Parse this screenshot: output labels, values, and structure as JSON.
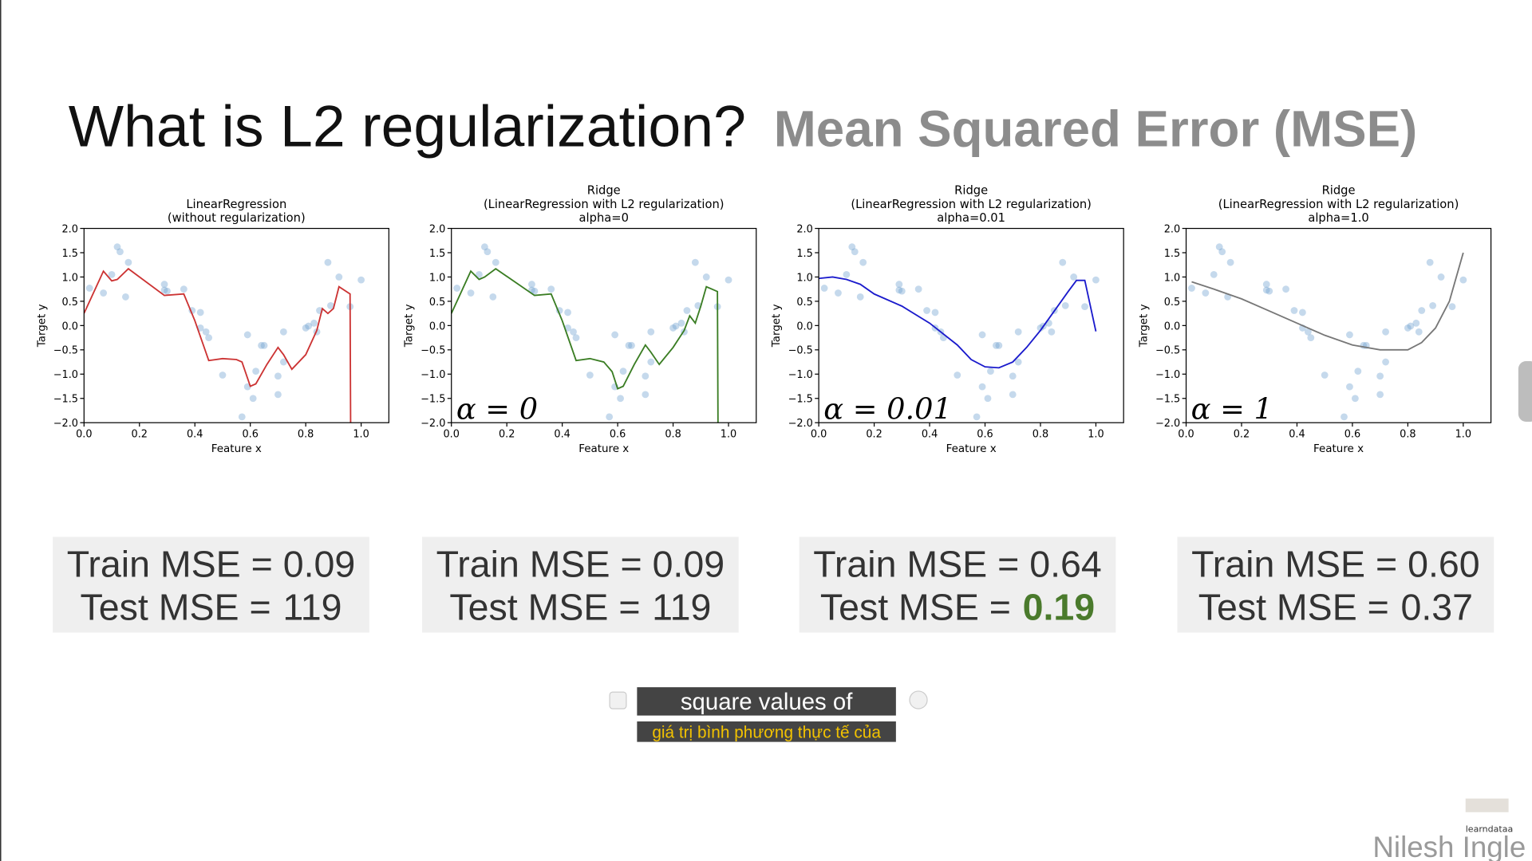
{
  "header": {
    "title": "What is L2 regularization?",
    "subtitle": "Mean Squared Error (MSE)"
  },
  "chart_data": [
    {
      "type": "scatter",
      "title": [
        "LinearRegression",
        "(without regularization)"
      ],
      "x_label": "Feature x",
      "y_label": "Target y",
      "xlim": [
        0,
        1.1
      ],
      "ylim": [
        -2,
        2
      ],
      "xticks": [
        {
          "value": 0,
          "label": "0.0"
        },
        {
          "value": 0.2,
          "label": "0.2"
        },
        {
          "value": 0.4,
          "label": "0.4"
        },
        {
          "value": 0.6,
          "label": "0.6"
        },
        {
          "value": 0.8,
          "label": "0.8"
        },
        {
          "value": 1,
          "label": "1.0"
        }
      ],
      "yticks": [
        {
          "value": -2,
          "label": "−2.0"
        },
        {
          "value": -1.5,
          "label": "−1.5"
        },
        {
          "value": -1,
          "label": "−1.0"
        },
        {
          "value": -0.5,
          "label": "−0.5"
        },
        {
          "value": 0,
          "label": "0.0"
        },
        {
          "value": 0.5,
          "label": "0.5"
        },
        {
          "value": 1,
          "label": "1.0"
        },
        {
          "value": 1.5,
          "label": "1.5"
        },
        {
          "value": 2,
          "label": "2.0"
        }
      ],
      "series": [
        {
          "style": "points",
          "color": "#6f9fd0",
          "x": [
            0.02,
            0.07,
            0.1,
            0.12,
            0.13,
            0.15,
            0.16,
            0.29,
            0.29,
            0.3,
            0.36,
            0.39,
            0.42,
            0.42,
            0.44,
            0.45,
            0.5,
            0.57,
            0.59,
            0.59,
            0.61,
            0.62,
            0.64,
            0.65,
            0.7,
            0.7,
            0.72,
            0.72,
            0.8,
            0.81,
            0.83,
            0.84,
            0.85,
            0.88,
            0.89,
            0.92,
            0.96,
            1.0
          ],
          "values": [
            0.77,
            0.67,
            1.05,
            1.62,
            1.52,
            0.59,
            1.3,
            0.85,
            0.73,
            0.71,
            0.75,
            0.31,
            -0.05,
            0.27,
            -0.13,
            -0.25,
            -1.02,
            -1.88,
            -0.19,
            -1.26,
            -1.5,
            -0.94,
            -0.41,
            -0.41,
            -1.04,
            -1.42,
            -0.75,
            -0.13,
            -0.05,
            -0.01,
            0.05,
            -0.13,
            0.31,
            1.3,
            0.41,
            1.0,
            0.39,
            0.94
          ]
        },
        {
          "style": "line",
          "color": "#cc3333",
          "x": [
            0,
            0.07,
            0.1,
            0.12,
            0.16,
            0.29,
            0.36,
            0.4,
            0.45,
            0.5,
            0.55,
            0.57,
            0.6,
            0.62,
            0.66,
            0.7,
            0.72,
            0.75,
            0.8,
            0.84,
            0.86,
            0.88,
            0.9,
            0.92,
            0.96,
            0.962
          ],
          "values": [
            0.25,
            1.12,
            0.92,
            0.95,
            1.17,
            0.62,
            0.65,
            0.1,
            -0.72,
            -0.68,
            -0.7,
            -0.75,
            -1.25,
            -1.2,
            -0.8,
            -0.45,
            -0.6,
            -0.9,
            -0.6,
            -0.1,
            0.35,
            0.25,
            0.35,
            0.8,
            0.65,
            -2.0
          ]
        }
      ]
    },
    {
      "type": "scatter",
      "title": [
        "Ridge",
        "(LinearRegression with L2 regularization)",
        "alpha=0"
      ],
      "x_label": "Feature x",
      "y_label": "Target y",
      "annotation": "α = 0",
      "xlim": [
        0,
        1.1
      ],
      "ylim": [
        -2,
        2
      ],
      "xticks": [
        {
          "value": 0,
          "label": "0.0"
        },
        {
          "value": 0.2,
          "label": "0.2"
        },
        {
          "value": 0.4,
          "label": "0.4"
        },
        {
          "value": 0.6,
          "label": "0.6"
        },
        {
          "value": 0.8,
          "label": "0.8"
        },
        {
          "value": 1,
          "label": "1.0"
        }
      ],
      "yticks": [
        {
          "value": -2,
          "label": "−2.0"
        },
        {
          "value": -1.5,
          "label": "−1.5"
        },
        {
          "value": -1,
          "label": "−1.0"
        },
        {
          "value": -0.5,
          "label": "−0.5"
        },
        {
          "value": 0,
          "label": "0.0"
        },
        {
          "value": 0.5,
          "label": "0.5"
        },
        {
          "value": 1,
          "label": "1.0"
        },
        {
          "value": 1.5,
          "label": "1.5"
        },
        {
          "value": 2,
          "label": "2.0"
        }
      ],
      "series": [
        {
          "style": "points",
          "color": "#6f9fd0",
          "x": [
            0.02,
            0.07,
            0.1,
            0.12,
            0.13,
            0.15,
            0.16,
            0.29,
            0.29,
            0.3,
            0.36,
            0.39,
            0.42,
            0.42,
            0.44,
            0.45,
            0.5,
            0.57,
            0.59,
            0.59,
            0.61,
            0.62,
            0.64,
            0.65,
            0.7,
            0.7,
            0.72,
            0.72,
            0.8,
            0.81,
            0.83,
            0.84,
            0.85,
            0.88,
            0.89,
            0.92,
            0.96,
            1.0
          ],
          "values": [
            0.77,
            0.67,
            1.05,
            1.62,
            1.52,
            0.59,
            1.3,
            0.85,
            0.73,
            0.71,
            0.75,
            0.31,
            -0.05,
            0.27,
            -0.13,
            -0.25,
            -1.02,
            -1.88,
            -0.19,
            -1.26,
            -1.5,
            -0.94,
            -0.41,
            -0.41,
            -1.04,
            -1.42,
            -0.75,
            -0.13,
            -0.05,
            -0.01,
            0.05,
            -0.13,
            0.31,
            1.3,
            0.41,
            1.0,
            0.39,
            0.94
          ]
        },
        {
          "style": "line",
          "color": "#3a7d23",
          "x": [
            0,
            0.07,
            0.1,
            0.12,
            0.16,
            0.3,
            0.36,
            0.4,
            0.45,
            0.5,
            0.55,
            0.58,
            0.6,
            0.62,
            0.66,
            0.7,
            0.72,
            0.75,
            0.8,
            0.84,
            0.86,
            0.88,
            0.9,
            0.92,
            0.96,
            0.962
          ],
          "values": [
            0.25,
            1.12,
            0.95,
            1.0,
            1.17,
            0.62,
            0.65,
            0.1,
            -0.72,
            -0.68,
            -0.75,
            -0.95,
            -1.3,
            -1.25,
            -0.8,
            -0.4,
            -0.55,
            -0.8,
            -0.45,
            -0.1,
            0.2,
            0.05,
            0.4,
            0.8,
            0.7,
            -2.0
          ]
        }
      ]
    },
    {
      "type": "scatter",
      "title": [
        "Ridge",
        "(LinearRegression with L2 regularization)",
        "alpha=0.01"
      ],
      "x_label": "Feature x",
      "y_label": "Target y",
      "annotation": "α = 0.01",
      "xlim": [
        0,
        1.1
      ],
      "ylim": [
        -2,
        2
      ],
      "xticks": [
        {
          "value": 0,
          "label": "0.0"
        },
        {
          "value": 0.2,
          "label": "0.2"
        },
        {
          "value": 0.4,
          "label": "0.4"
        },
        {
          "value": 0.6,
          "label": "0.6"
        },
        {
          "value": 0.8,
          "label": "0.8"
        },
        {
          "value": 1,
          "label": "1.0"
        }
      ],
      "yticks": [
        {
          "value": -2,
          "label": "−2.0"
        },
        {
          "value": -1.5,
          "label": "−1.5"
        },
        {
          "value": -1,
          "label": "−1.0"
        },
        {
          "value": -0.5,
          "label": "−0.5"
        },
        {
          "value": 0,
          "label": "0.0"
        },
        {
          "value": 0.5,
          "label": "0.5"
        },
        {
          "value": 1,
          "label": "1.0"
        },
        {
          "value": 1.5,
          "label": "1.5"
        },
        {
          "value": 2,
          "label": "2.0"
        }
      ],
      "series": [
        {
          "style": "points",
          "color": "#6f9fd0",
          "x": [
            0.02,
            0.07,
            0.1,
            0.12,
            0.13,
            0.15,
            0.16,
            0.29,
            0.29,
            0.3,
            0.36,
            0.39,
            0.42,
            0.42,
            0.44,
            0.45,
            0.5,
            0.57,
            0.59,
            0.59,
            0.61,
            0.62,
            0.64,
            0.65,
            0.7,
            0.7,
            0.72,
            0.72,
            0.8,
            0.81,
            0.83,
            0.84,
            0.85,
            0.88,
            0.89,
            0.92,
            0.96,
            1.0
          ],
          "values": [
            0.77,
            0.67,
            1.05,
            1.62,
            1.52,
            0.59,
            1.3,
            0.85,
            0.73,
            0.71,
            0.75,
            0.31,
            -0.05,
            0.27,
            -0.13,
            -0.25,
            -1.02,
            -1.88,
            -0.19,
            -1.26,
            -1.5,
            -0.94,
            -0.41,
            -0.41,
            -1.04,
            -1.42,
            -0.75,
            -0.13,
            -0.05,
            -0.01,
            0.05,
            -0.13,
            0.31,
            1.3,
            0.41,
            1.0,
            0.39,
            0.94
          ]
        },
        {
          "style": "line",
          "color": "#1a1acc",
          "x": [
            0,
            0.05,
            0.1,
            0.15,
            0.2,
            0.3,
            0.4,
            0.5,
            0.55,
            0.6,
            0.65,
            0.7,
            0.75,
            0.8,
            0.85,
            0.9,
            0.93,
            0.96,
            1.0
          ],
          "values": [
            0.97,
            1.0,
            0.95,
            0.85,
            0.65,
            0.4,
            0.05,
            -0.4,
            -0.7,
            -0.85,
            -0.87,
            -0.75,
            -0.45,
            -0.1,
            0.3,
            0.7,
            0.93,
            0.93,
            -0.12
          ]
        }
      ]
    },
    {
      "type": "scatter",
      "title": [
        "Ridge",
        "(LinearRegression with L2 regularization)",
        "alpha=1.0"
      ],
      "x_label": "Feature x",
      "y_label": "Target y",
      "annotation": "α = 1",
      "xlim": [
        0,
        1.1
      ],
      "ylim": [
        -2,
        2
      ],
      "xticks": [
        {
          "value": 0,
          "label": "0.0"
        },
        {
          "value": 0.2,
          "label": "0.2"
        },
        {
          "value": 0.4,
          "label": "0.4"
        },
        {
          "value": 0.6,
          "label": "0.6"
        },
        {
          "value": 0.8,
          "label": "0.8"
        },
        {
          "value": 1,
          "label": "1.0"
        }
      ],
      "yticks": [
        {
          "value": -2,
          "label": "−2.0"
        },
        {
          "value": -1.5,
          "label": "−1.5"
        },
        {
          "value": -1,
          "label": "−1.0"
        },
        {
          "value": -0.5,
          "label": "−0.5"
        },
        {
          "value": 0,
          "label": "0.0"
        },
        {
          "value": 0.5,
          "label": "0.5"
        },
        {
          "value": 1,
          "label": "1.0"
        },
        {
          "value": 1.5,
          "label": "1.5"
        },
        {
          "value": 2,
          "label": "2.0"
        }
      ],
      "series": [
        {
          "style": "points",
          "color": "#6f9fd0",
          "x": [
            0.02,
            0.07,
            0.1,
            0.12,
            0.13,
            0.15,
            0.16,
            0.29,
            0.29,
            0.3,
            0.36,
            0.39,
            0.42,
            0.42,
            0.44,
            0.45,
            0.5,
            0.57,
            0.59,
            0.59,
            0.61,
            0.62,
            0.64,
            0.65,
            0.7,
            0.7,
            0.72,
            0.72,
            0.8,
            0.81,
            0.83,
            0.84,
            0.85,
            0.88,
            0.89,
            0.92,
            0.96,
            1.0
          ],
          "values": [
            0.77,
            0.67,
            1.05,
            1.62,
            1.52,
            0.59,
            1.3,
            0.85,
            0.73,
            0.71,
            0.75,
            0.31,
            -0.05,
            0.27,
            -0.13,
            -0.25,
            -1.02,
            -1.88,
            -0.19,
            -1.26,
            -1.5,
            -0.94,
            -0.41,
            -0.41,
            -1.04,
            -1.42,
            -0.75,
            -0.13,
            -0.05,
            -0.01,
            0.05,
            -0.13,
            0.31,
            1.3,
            0.41,
            1.0,
            0.39,
            0.94
          ]
        },
        {
          "style": "line",
          "color": "#777777",
          "x": [
            0.02,
            0.1,
            0.2,
            0.3,
            0.4,
            0.5,
            0.6,
            0.7,
            0.8,
            0.85,
            0.9,
            0.95,
            1.0
          ],
          "values": [
            0.9,
            0.75,
            0.55,
            0.3,
            0.05,
            -0.2,
            -0.4,
            -0.5,
            -0.5,
            -0.35,
            -0.05,
            0.5,
            1.5
          ]
        }
      ]
    }
  ],
  "mse_boxes": [
    {
      "train": "Train MSE = 0.09",
      "test_label": "Test MSE =",
      "test_value": "119",
      "highlight": false
    },
    {
      "train": "Train MSE = 0.09",
      "test_label": "Test MSE =",
      "test_value": "119",
      "highlight": false
    },
    {
      "train": "Train MSE = 0.64",
      "test_label": "Test MSE =",
      "test_value": "0.19",
      "highlight": true
    },
    {
      "train": "Train MSE = 0.60",
      "test_label": "Test MSE =",
      "test_value": "0.37",
      "highlight": false
    }
  ],
  "caption": {
    "line1": "square values of",
    "line2": "giá trị bình phương thực tế của"
  },
  "watermark": {
    "brand": "learndataa",
    "author": "Nilesh Ingle"
  }
}
